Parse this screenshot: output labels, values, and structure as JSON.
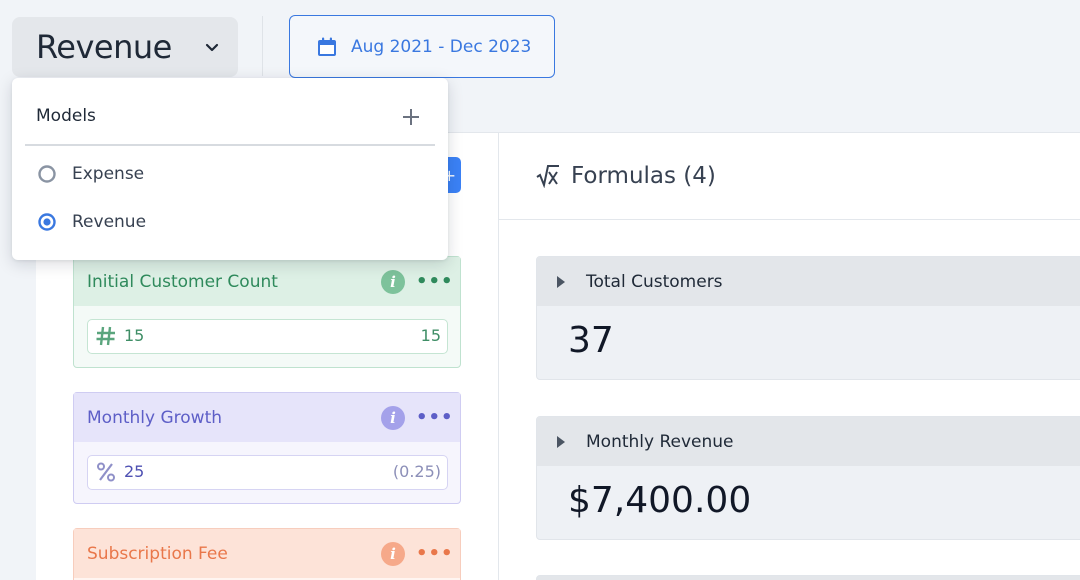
{
  "model_select": {
    "title": "Revenue"
  },
  "date_range": {
    "label": "Aug 2021 - Dec 2023"
  },
  "dropdown": {
    "header": "Models",
    "items": [
      {
        "label": "Expense",
        "selected": false
      },
      {
        "label": "Revenue",
        "selected": true
      }
    ]
  },
  "formulas": {
    "title": "Formulas (4)",
    "items": [
      {
        "name": "Total Customers",
        "value": "37"
      },
      {
        "name": "Monthly Revenue",
        "value": "$7,400.00"
      }
    ]
  },
  "variables": [
    {
      "name": "Initial Customer Count",
      "input": "15",
      "result": "15",
      "type_icon": "hash-icon",
      "color": "#2f8a5c"
    },
    {
      "name": "Monthly Growth",
      "input": "25",
      "result": "(0.25)",
      "type_icon": "percent-icon",
      "color": "#5d5ec7"
    },
    {
      "name": "Subscription Fee",
      "color": "#e9774a"
    }
  ],
  "colors": {
    "accent": "#3a78e0",
    "background": "#f1f4f8"
  }
}
